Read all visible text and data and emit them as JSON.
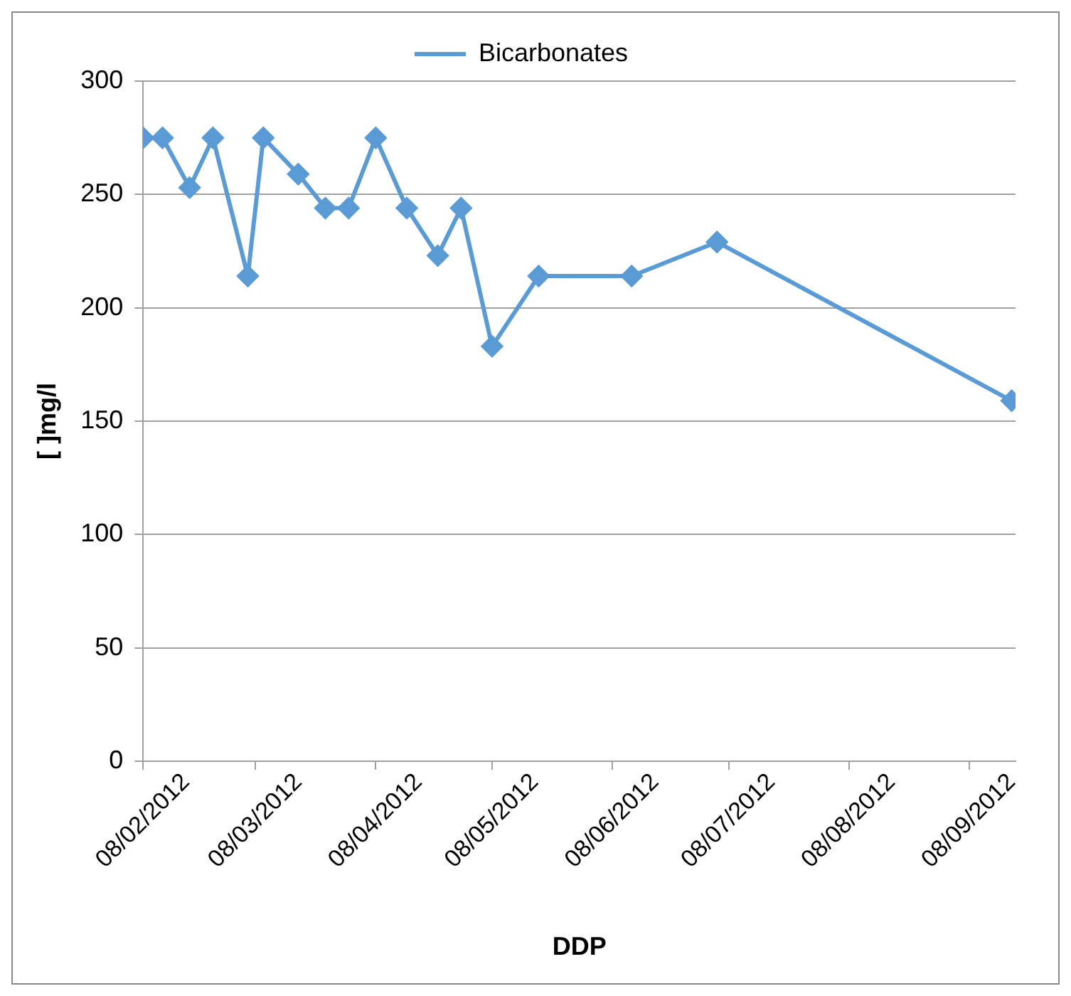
{
  "chart_data": {
    "type": "line",
    "xlabel": "DDP",
    "ylabel": "[ ]mg/l",
    "x": [
      "2012-02-08",
      "2012-02-13",
      "2012-02-20",
      "2012-02-26",
      "2012-03-06",
      "2012-03-10",
      "2012-03-19",
      "2012-03-26",
      "2012-04-01",
      "2012-04-08",
      "2012-04-16",
      "2012-04-24",
      "2012-04-30",
      "2012-05-08",
      "2012-05-20",
      "2012-06-13",
      "2012-07-05",
      "2012-09-19"
    ],
    "series": [
      {
        "name": "Bicarbonates",
        "color": "#5b9bd5",
        "values": [
          275,
          275,
          253,
          275,
          214,
          275,
          259,
          244,
          244,
          275,
          244,
          223,
          244,
          183,
          214,
          214,
          229,
          159
        ]
      }
    ],
    "xlim": [
      "2012-02-08",
      "2012-09-20"
    ],
    "xticks": [
      {
        "value": "2012-02-08",
        "label": "08/02/2012"
      },
      {
        "value": "2012-03-08",
        "label": "08/03/2012"
      },
      {
        "value": "2012-04-08",
        "label": "08/04/2012"
      },
      {
        "value": "2012-05-08",
        "label": "08/05/2012"
      },
      {
        "value": "2012-06-08",
        "label": "08/06/2012"
      },
      {
        "value": "2012-07-08",
        "label": "08/07/2012"
      },
      {
        "value": "2012-08-08",
        "label": "08/08/2012"
      },
      {
        "value": "2012-09-08",
        "label": "08/09/2012"
      }
    ],
    "ylim": [
      0,
      300
    ],
    "yticks": [
      0,
      50,
      100,
      150,
      200,
      250,
      300
    ],
    "grid": "y",
    "legend": "top",
    "marker": "diamond",
    "line_style": "solid"
  }
}
